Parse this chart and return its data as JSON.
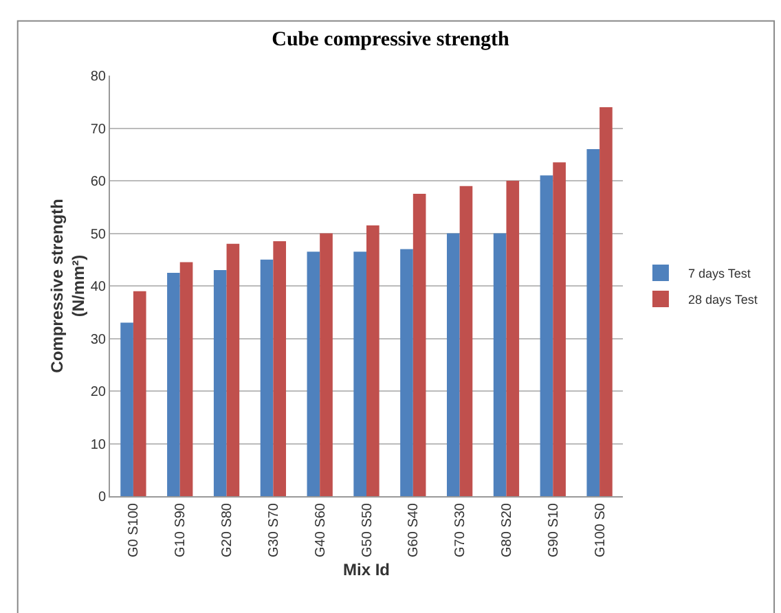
{
  "chart_data": {
    "type": "bar",
    "title": "Cube compressive strength",
    "xlabel": "Mix Id",
    "ylabel": "Compressive strength\n(N/mm²)",
    "categories": [
      "G0 S100",
      "G10 S90",
      "G20 S80",
      "G30 S70",
      "G40 S60",
      "G50 S50",
      "G60 S40",
      "G70 S30",
      "G80 S20",
      "G90 S10",
      "G100 S0"
    ],
    "series": [
      {
        "name": "7 days Test",
        "color": "#4f81bd",
        "values": [
          33,
          42.5,
          43,
          45,
          46.5,
          46.5,
          47,
          50,
          50,
          61,
          66
        ]
      },
      {
        "name": "28 days Test",
        "color": "#c0504d",
        "values": [
          39,
          44.5,
          48,
          48.5,
          50,
          51.5,
          57.5,
          59,
          60,
          63.5,
          74
        ]
      }
    ],
    "ylim": [
      0,
      80
    ],
    "yticks": [
      0,
      10,
      20,
      30,
      40,
      50,
      60,
      70,
      80
    ],
    "grid": "y",
    "legend": "right"
  }
}
